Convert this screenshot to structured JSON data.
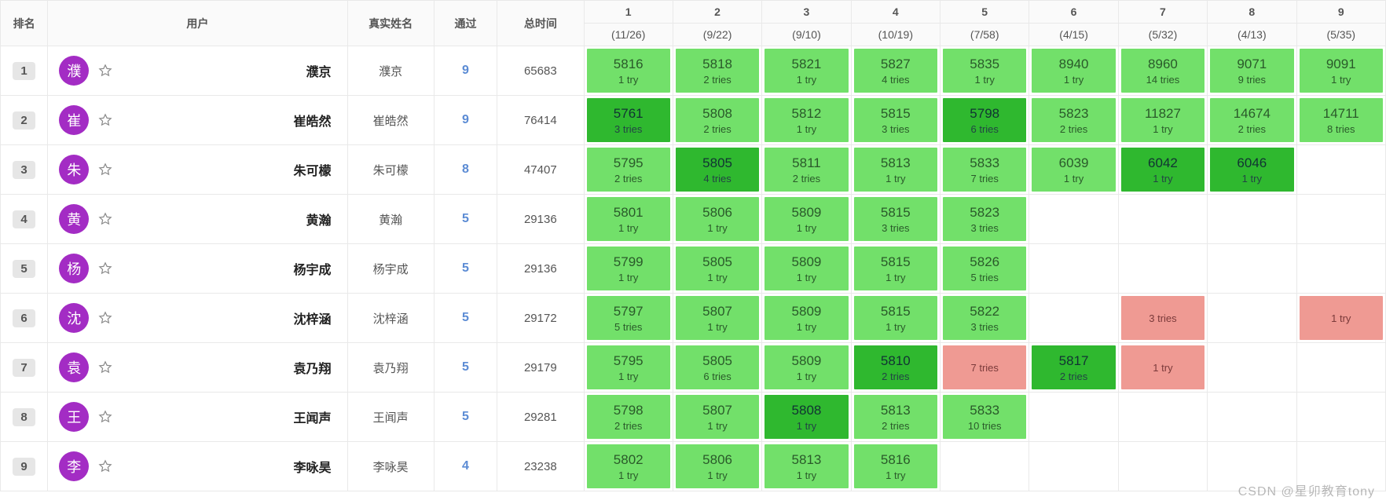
{
  "colors": {
    "avatar": "#a32cc4",
    "light_green": "#72e06a",
    "dark_green": "#2fb82f",
    "red": "#ef9a93",
    "rank_pill": "#e6e6e6"
  },
  "watermark": "CSDN @星卯教育tony",
  "header": {
    "rank": "排名",
    "user": "用户",
    "real_name": "真实姓名",
    "pass": "通过",
    "total_time": "总时间",
    "problems": [
      {
        "num": "1",
        "sub": "(11/26)"
      },
      {
        "num": "2",
        "sub": "(9/22)"
      },
      {
        "num": "3",
        "sub": "(9/10)"
      },
      {
        "num": "4",
        "sub": "(10/19)"
      },
      {
        "num": "5",
        "sub": "(7/58)"
      },
      {
        "num": "6",
        "sub": "(4/15)"
      },
      {
        "num": "7",
        "sub": "(5/32)"
      },
      {
        "num": "8",
        "sub": "(4/13)"
      },
      {
        "num": "9",
        "sub": "(5/35)"
      }
    ]
  },
  "rows": [
    {
      "rank": "1",
      "avatar": "濮",
      "name": "濮京",
      "real": "濮京",
      "pass": "9",
      "time": "65683",
      "cells": [
        {
          "score": "5816",
          "tries": "1 try",
          "state": "light"
        },
        {
          "score": "5818",
          "tries": "2 tries",
          "state": "light"
        },
        {
          "score": "5821",
          "tries": "1 try",
          "state": "light"
        },
        {
          "score": "5827",
          "tries": "4 tries",
          "state": "light"
        },
        {
          "score": "5835",
          "tries": "1 try",
          "state": "light"
        },
        {
          "score": "8940",
          "tries": "1 try",
          "state": "light"
        },
        {
          "score": "8960",
          "tries": "14 tries",
          "state": "light"
        },
        {
          "score": "9071",
          "tries": "9 tries",
          "state": "light"
        },
        {
          "score": "9091",
          "tries": "1 try",
          "state": "light"
        }
      ]
    },
    {
      "rank": "2",
      "avatar": "崔",
      "name": "崔皓然",
      "real": "崔皓然",
      "pass": "9",
      "time": "76414",
      "cells": [
        {
          "score": "5761",
          "tries": "3 tries",
          "state": "dark"
        },
        {
          "score": "5808",
          "tries": "2 tries",
          "state": "light"
        },
        {
          "score": "5812",
          "tries": "1 try",
          "state": "light"
        },
        {
          "score": "5815",
          "tries": "3 tries",
          "state": "light"
        },
        {
          "score": "5798",
          "tries": "6 tries",
          "state": "dark"
        },
        {
          "score": "5823",
          "tries": "2 tries",
          "state": "light"
        },
        {
          "score": "11827",
          "tries": "1 try",
          "state": "light"
        },
        {
          "score": "14674",
          "tries": "2 tries",
          "state": "light"
        },
        {
          "score": "14711",
          "tries": "8 tries",
          "state": "light"
        }
      ]
    },
    {
      "rank": "3",
      "avatar": "朱",
      "name": "朱可檬",
      "real": "朱可檬",
      "pass": "8",
      "time": "47407",
      "cells": [
        {
          "score": "5795",
          "tries": "2 tries",
          "state": "light"
        },
        {
          "score": "5805",
          "tries": "4 tries",
          "state": "dark"
        },
        {
          "score": "5811",
          "tries": "2 tries",
          "state": "light"
        },
        {
          "score": "5813",
          "tries": "1 try",
          "state": "light"
        },
        {
          "score": "5833",
          "tries": "7 tries",
          "state": "light"
        },
        {
          "score": "6039",
          "tries": "1 try",
          "state": "light"
        },
        {
          "score": "6042",
          "tries": "1 try",
          "state": "dark"
        },
        {
          "score": "6046",
          "tries": "1 try",
          "state": "dark"
        },
        {
          "state": "empty"
        }
      ]
    },
    {
      "rank": "4",
      "avatar": "黄",
      "name": "黄瀚",
      "real": "黄瀚",
      "pass": "5",
      "time": "29136",
      "cells": [
        {
          "score": "5801",
          "tries": "1 try",
          "state": "light"
        },
        {
          "score": "5806",
          "tries": "1 try",
          "state": "light"
        },
        {
          "score": "5809",
          "tries": "1 try",
          "state": "light"
        },
        {
          "score": "5815",
          "tries": "3 tries",
          "state": "light"
        },
        {
          "score": "5823",
          "tries": "3 tries",
          "state": "light"
        },
        {
          "state": "empty"
        },
        {
          "state": "empty"
        },
        {
          "state": "empty"
        },
        {
          "state": "empty"
        }
      ]
    },
    {
      "rank": "5",
      "avatar": "杨",
      "name": "杨宇成",
      "real": "杨宇成",
      "pass": "5",
      "time": "29136",
      "cells": [
        {
          "score": "5799",
          "tries": "1 try",
          "state": "light"
        },
        {
          "score": "5805",
          "tries": "1 try",
          "state": "light"
        },
        {
          "score": "5809",
          "tries": "1 try",
          "state": "light"
        },
        {
          "score": "5815",
          "tries": "1 try",
          "state": "light"
        },
        {
          "score": "5826",
          "tries": "5 tries",
          "state": "light"
        },
        {
          "state": "empty"
        },
        {
          "state": "empty"
        },
        {
          "state": "empty"
        },
        {
          "state": "empty"
        }
      ]
    },
    {
      "rank": "6",
      "avatar": "沈",
      "name": "沈梓涵",
      "real": "沈梓涵",
      "pass": "5",
      "time": "29172",
      "cells": [
        {
          "score": "5797",
          "tries": "5 tries",
          "state": "light"
        },
        {
          "score": "5807",
          "tries": "1 try",
          "state": "light"
        },
        {
          "score": "5809",
          "tries": "1 try",
          "state": "light"
        },
        {
          "score": "5815",
          "tries": "1 try",
          "state": "light"
        },
        {
          "score": "5822",
          "tries": "3 tries",
          "state": "light"
        },
        {
          "state": "empty"
        },
        {
          "tries": "3 tries",
          "state": "red"
        },
        {
          "state": "empty"
        },
        {
          "tries": "1 try",
          "state": "red"
        }
      ]
    },
    {
      "rank": "7",
      "avatar": "袁",
      "name": "袁乃翔",
      "real": "袁乃翔",
      "pass": "5",
      "time": "29179",
      "cells": [
        {
          "score": "5795",
          "tries": "1 try",
          "state": "light"
        },
        {
          "score": "5805",
          "tries": "6 tries",
          "state": "light"
        },
        {
          "score": "5809",
          "tries": "1 try",
          "state": "light"
        },
        {
          "score": "5810",
          "tries": "2 tries",
          "state": "dark"
        },
        {
          "tries": "7 tries",
          "state": "red"
        },
        {
          "score": "5817",
          "tries": "2 tries",
          "state": "dark"
        },
        {
          "tries": "1 try",
          "state": "red"
        },
        {
          "state": "empty"
        },
        {
          "state": "empty"
        }
      ]
    },
    {
      "rank": "8",
      "avatar": "王",
      "name": "王闻声",
      "real": "王闻声",
      "pass": "5",
      "time": "29281",
      "cells": [
        {
          "score": "5798",
          "tries": "2 tries",
          "state": "light"
        },
        {
          "score": "5807",
          "tries": "1 try",
          "state": "light"
        },
        {
          "score": "5808",
          "tries": "1 try",
          "state": "dark"
        },
        {
          "score": "5813",
          "tries": "2 tries",
          "state": "light"
        },
        {
          "score": "5833",
          "tries": "10 tries",
          "state": "light"
        },
        {
          "state": "empty"
        },
        {
          "state": "empty"
        },
        {
          "state": "empty"
        },
        {
          "state": "empty"
        }
      ]
    },
    {
      "rank": "9",
      "avatar": "李",
      "name": "李咏昊",
      "real": "李咏昊",
      "pass": "4",
      "time": "23238",
      "cells": [
        {
          "score": "5802",
          "tries": "1 try",
          "state": "light"
        },
        {
          "score": "5806",
          "tries": "1 try",
          "state": "light"
        },
        {
          "score": "5813",
          "tries": "1 try",
          "state": "light"
        },
        {
          "score": "5816",
          "tries": "1 try",
          "state": "light"
        },
        {
          "state": "empty"
        },
        {
          "state": "empty"
        },
        {
          "state": "empty"
        },
        {
          "state": "empty"
        },
        {
          "state": "empty"
        }
      ]
    }
  ]
}
